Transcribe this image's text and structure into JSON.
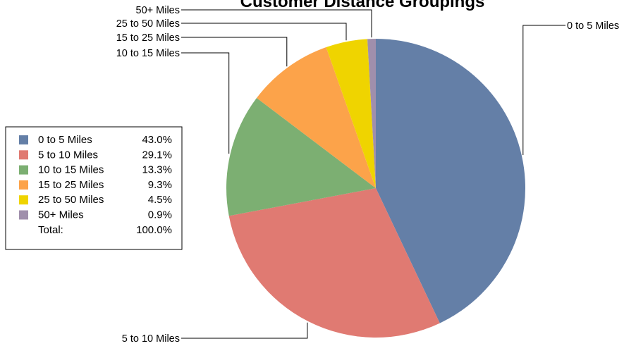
{
  "chart_data": {
    "type": "pie",
    "title": "Customer Distance Groupings",
    "slices": [
      {
        "label": "0 to 5 Miles",
        "value": 43.0,
        "display": "43.0%",
        "color": "#647fa7"
      },
      {
        "label": "5 to 10 Miles",
        "value": 29.1,
        "display": "29.1%",
        "color": "#e07a72"
      },
      {
        "label": "10 to 15 Miles",
        "value": 13.3,
        "display": "13.3%",
        "color": "#7caf72"
      },
      {
        "label": "15 to 25 Miles",
        "value": 9.3,
        "display": "9.3%",
        "color": "#fca34a"
      },
      {
        "label": "25 to 50 Miles",
        "value": 4.5,
        "display": "4.5%",
        "color": "#efd400"
      },
      {
        "label": "50+ Miles",
        "value": 0.9,
        "display": "0.9%",
        "color": "#a08fac"
      }
    ],
    "total_label": "Total:",
    "total_value": "100.0%",
    "legend_position": "left"
  }
}
